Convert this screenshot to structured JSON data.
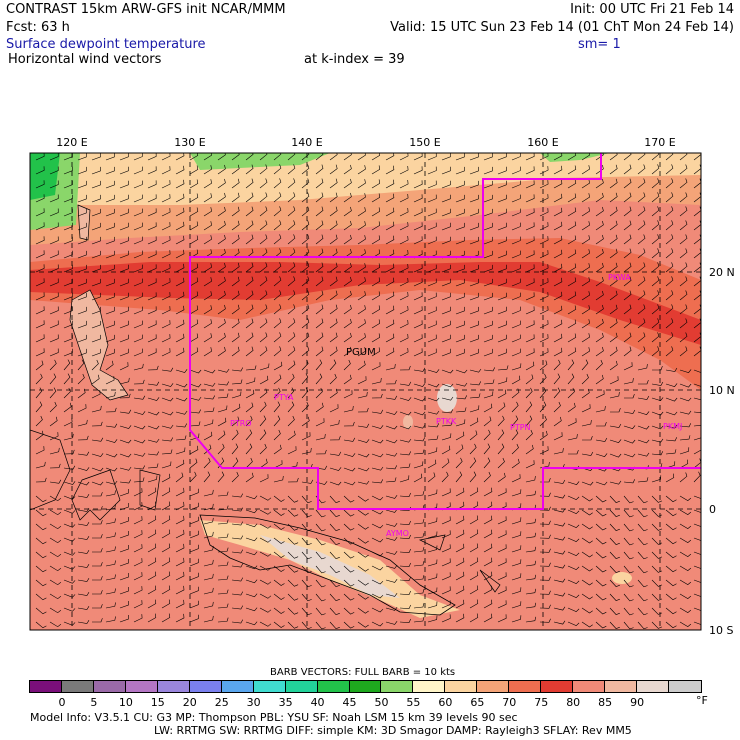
{
  "header": {
    "line1_left": "CONTRAST 15km ARW-GFS init   NCAR/MMM",
    "line1_right": "Init: 00 UTC Fri 21 Feb 14",
    "line2_left": "Fcst:   63 h",
    "line2_right": "Valid: 15 UTC Sun 23 Feb 14 (01 ChT Mon 24 Feb 14)",
    "line3_left": "Surface dewpoint temperature",
    "line3_right": "sm= 1",
    "line4_left": "Horizontal wind vectors",
    "line4_mid": "at k-index =  39"
  },
  "map": {
    "lon_labels": [
      "120 E",
      "130 E",
      "140 E",
      "150 E",
      "160 E",
      "170 E"
    ],
    "lat_labels": [
      "20 N",
      "10 N",
      "0",
      "10 S"
    ],
    "stations": [
      {
        "name": "PGUM"
      },
      {
        "name": "PTYA"
      },
      {
        "name": "PTRO"
      },
      {
        "name": "PKWA"
      },
      {
        "name": "PTKK"
      },
      {
        "name": "PTPN"
      },
      {
        "name": "PKMJ"
      },
      {
        "name": "AYMO"
      }
    ],
    "boundary_color": "#ee00ee"
  },
  "legend": {
    "barb_title": "BARB VECTORS:  FULL BARB = 10 kts",
    "unit": "°F",
    "ticks": [
      "0",
      "5",
      "10",
      "15",
      "20",
      "25",
      "30",
      "35",
      "40",
      "45",
      "50",
      "55",
      "60",
      "65",
      "70",
      "75",
      "80",
      "85",
      "90"
    ],
    "colors": [
      "#7a0f7a",
      "#7a7a7a",
      "#9a6aa8",
      "#b476c4",
      "#9a86dd",
      "#7a80ee",
      "#5aa6ee",
      "#40dcd0",
      "#22d29a",
      "#22c24a",
      "#1ea81e",
      "#8ad66a",
      "#fff5c8",
      "#fbd4a0",
      "#f4a478",
      "#ee6e50",
      "#e23c32",
      "#f08a78",
      "#f0b8a0",
      "#e8d8d0",
      "#cccccc"
    ]
  },
  "footer": {
    "line1": "Model Info: V3.5.1    CU: G3      MP: Thompson     PBL: YSU       SF: Noah LSM     15 km    39 levels    90 sec",
    "line2": "LW: RRTMG    SW: RRTMG   DIFF: simple KM: 3D Smagor DAMP: Rayleigh3   SFLAY: Rev MM5"
  }
}
